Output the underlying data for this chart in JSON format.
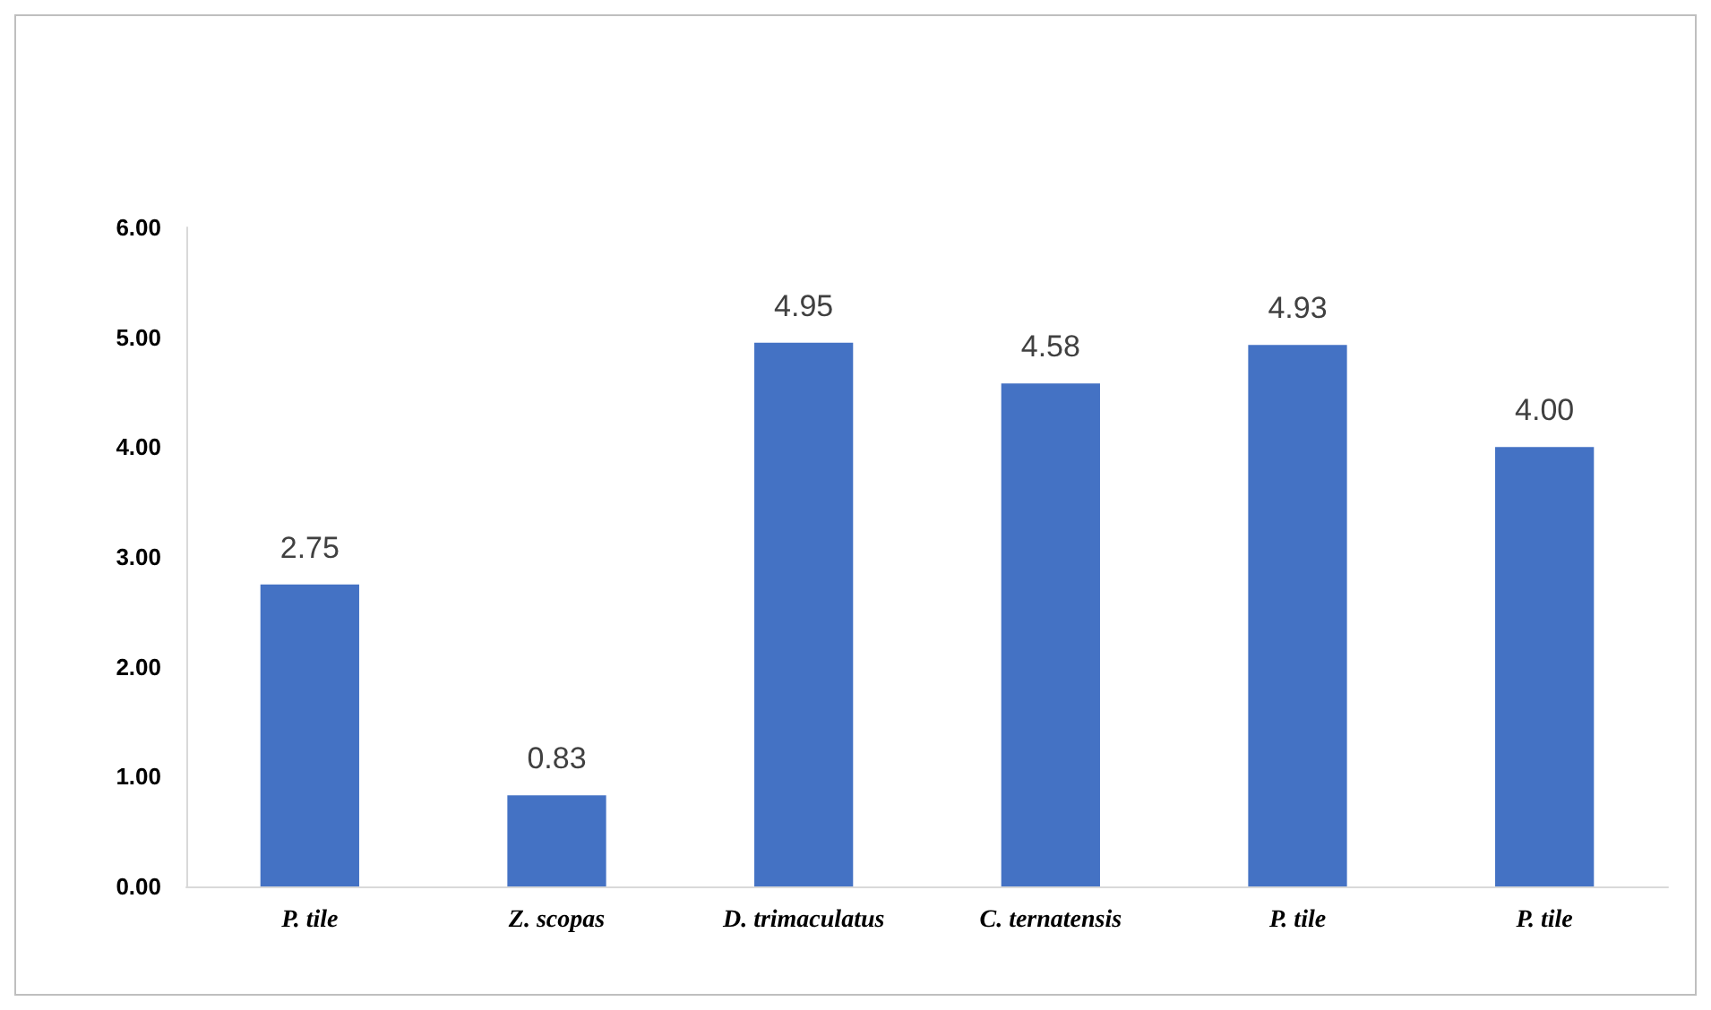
{
  "chart_data": {
    "type": "bar",
    "categories": [
      "P. tile",
      "Z. scopas",
      "D. trimaculatus",
      "C. ternatensis",
      "P. tile",
      "P. tile"
    ],
    "values": [
      2.75,
      0.83,
      4.95,
      4.58,
      4.93,
      4.0
    ],
    "value_labels": [
      "2.75",
      "0.83",
      "4.95",
      "4.58",
      "4.93",
      "4.00"
    ],
    "color": "#4472c4",
    "ylim": [
      0,
      6
    ],
    "yticks": [
      {
        "value": 0,
        "label": "0.00"
      },
      {
        "value": 1,
        "label": "1.00"
      },
      {
        "value": 2,
        "label": "2.00"
      },
      {
        "value": 3,
        "label": "3.00"
      },
      {
        "value": 4,
        "label": "4.00"
      },
      {
        "value": 5,
        "label": "5.00"
      },
      {
        "value": 6,
        "label": "6.00"
      }
    ],
    "grid": false
  }
}
